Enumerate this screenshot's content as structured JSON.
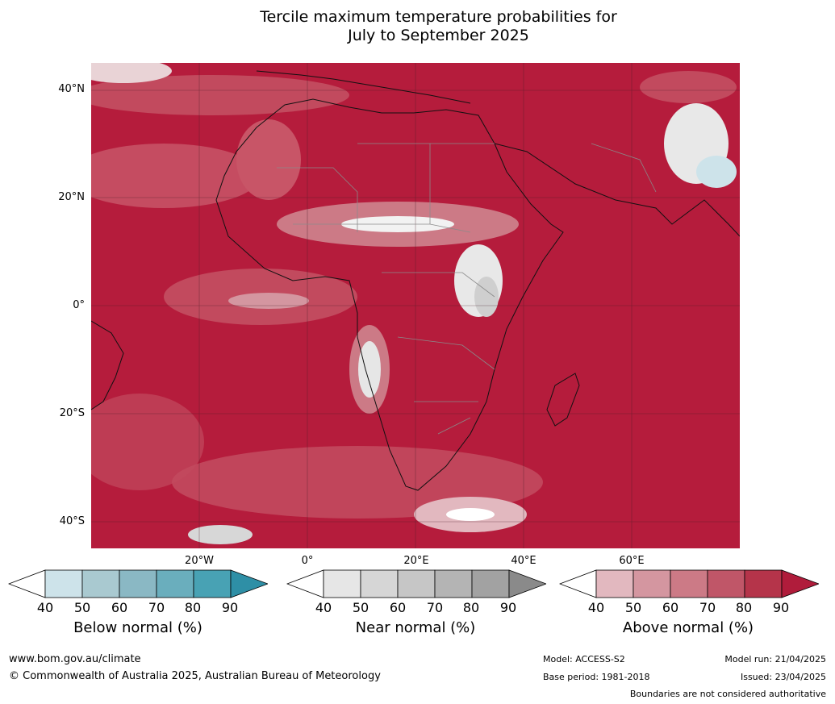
{
  "title_line1": "Tercile maximum temperature probabilities for",
  "title_line2": "July to September 2025",
  "lat_labels": [
    "40°N",
    "20°N",
    "0°",
    "20°S",
    "40°S"
  ],
  "lon_labels": [
    "20°W",
    "0°",
    "20°E",
    "40°E",
    "60°E"
  ],
  "colorbars": {
    "below": {
      "label": "Below normal (%)",
      "ticks": [
        "40",
        "50",
        "60",
        "70",
        "80",
        "90"
      ],
      "colors": [
        "#ffffff",
        "#cde3ea",
        "#a9c9d0",
        "#8ab8c4",
        "#6aaebd",
        "#48a2b4",
        "#2e8fa6"
      ]
    },
    "near": {
      "label": "Near normal (%)",
      "ticks": [
        "40",
        "50",
        "60",
        "70",
        "80",
        "90"
      ],
      "colors": [
        "#ffffff",
        "#e6e6e6",
        "#d6d6d6",
        "#c6c6c6",
        "#b4b4b4",
        "#a2a2a2",
        "#8a8a8a"
      ]
    },
    "above": {
      "label": "Above normal (%)",
      "ticks": [
        "40",
        "50",
        "60",
        "70",
        "80",
        "90"
      ],
      "colors": [
        "#ffffff",
        "#e2b8bf",
        "#d496a0",
        "#cc7a86",
        "#c05668",
        "#b5344a",
        "#b01c3b"
      ]
    }
  },
  "footer": {
    "website": "www.bom.gov.au/climate",
    "copyright": "© Commonwealth of Australia 2025, Australian Bureau of Meteorology",
    "model": "Model: ACCESS-S2",
    "base_period": "Base period: 1981-2018",
    "model_run": "Model run: 21/04/2025",
    "issued": "Issued: 23/04/2025",
    "disclaimer": "Boundaries are not considered authoritative"
  },
  "colors": {
    "dominant": "#b51c3c",
    "mid": "#c24a5e",
    "light": "#d98a95",
    "white": "#ffffff"
  }
}
